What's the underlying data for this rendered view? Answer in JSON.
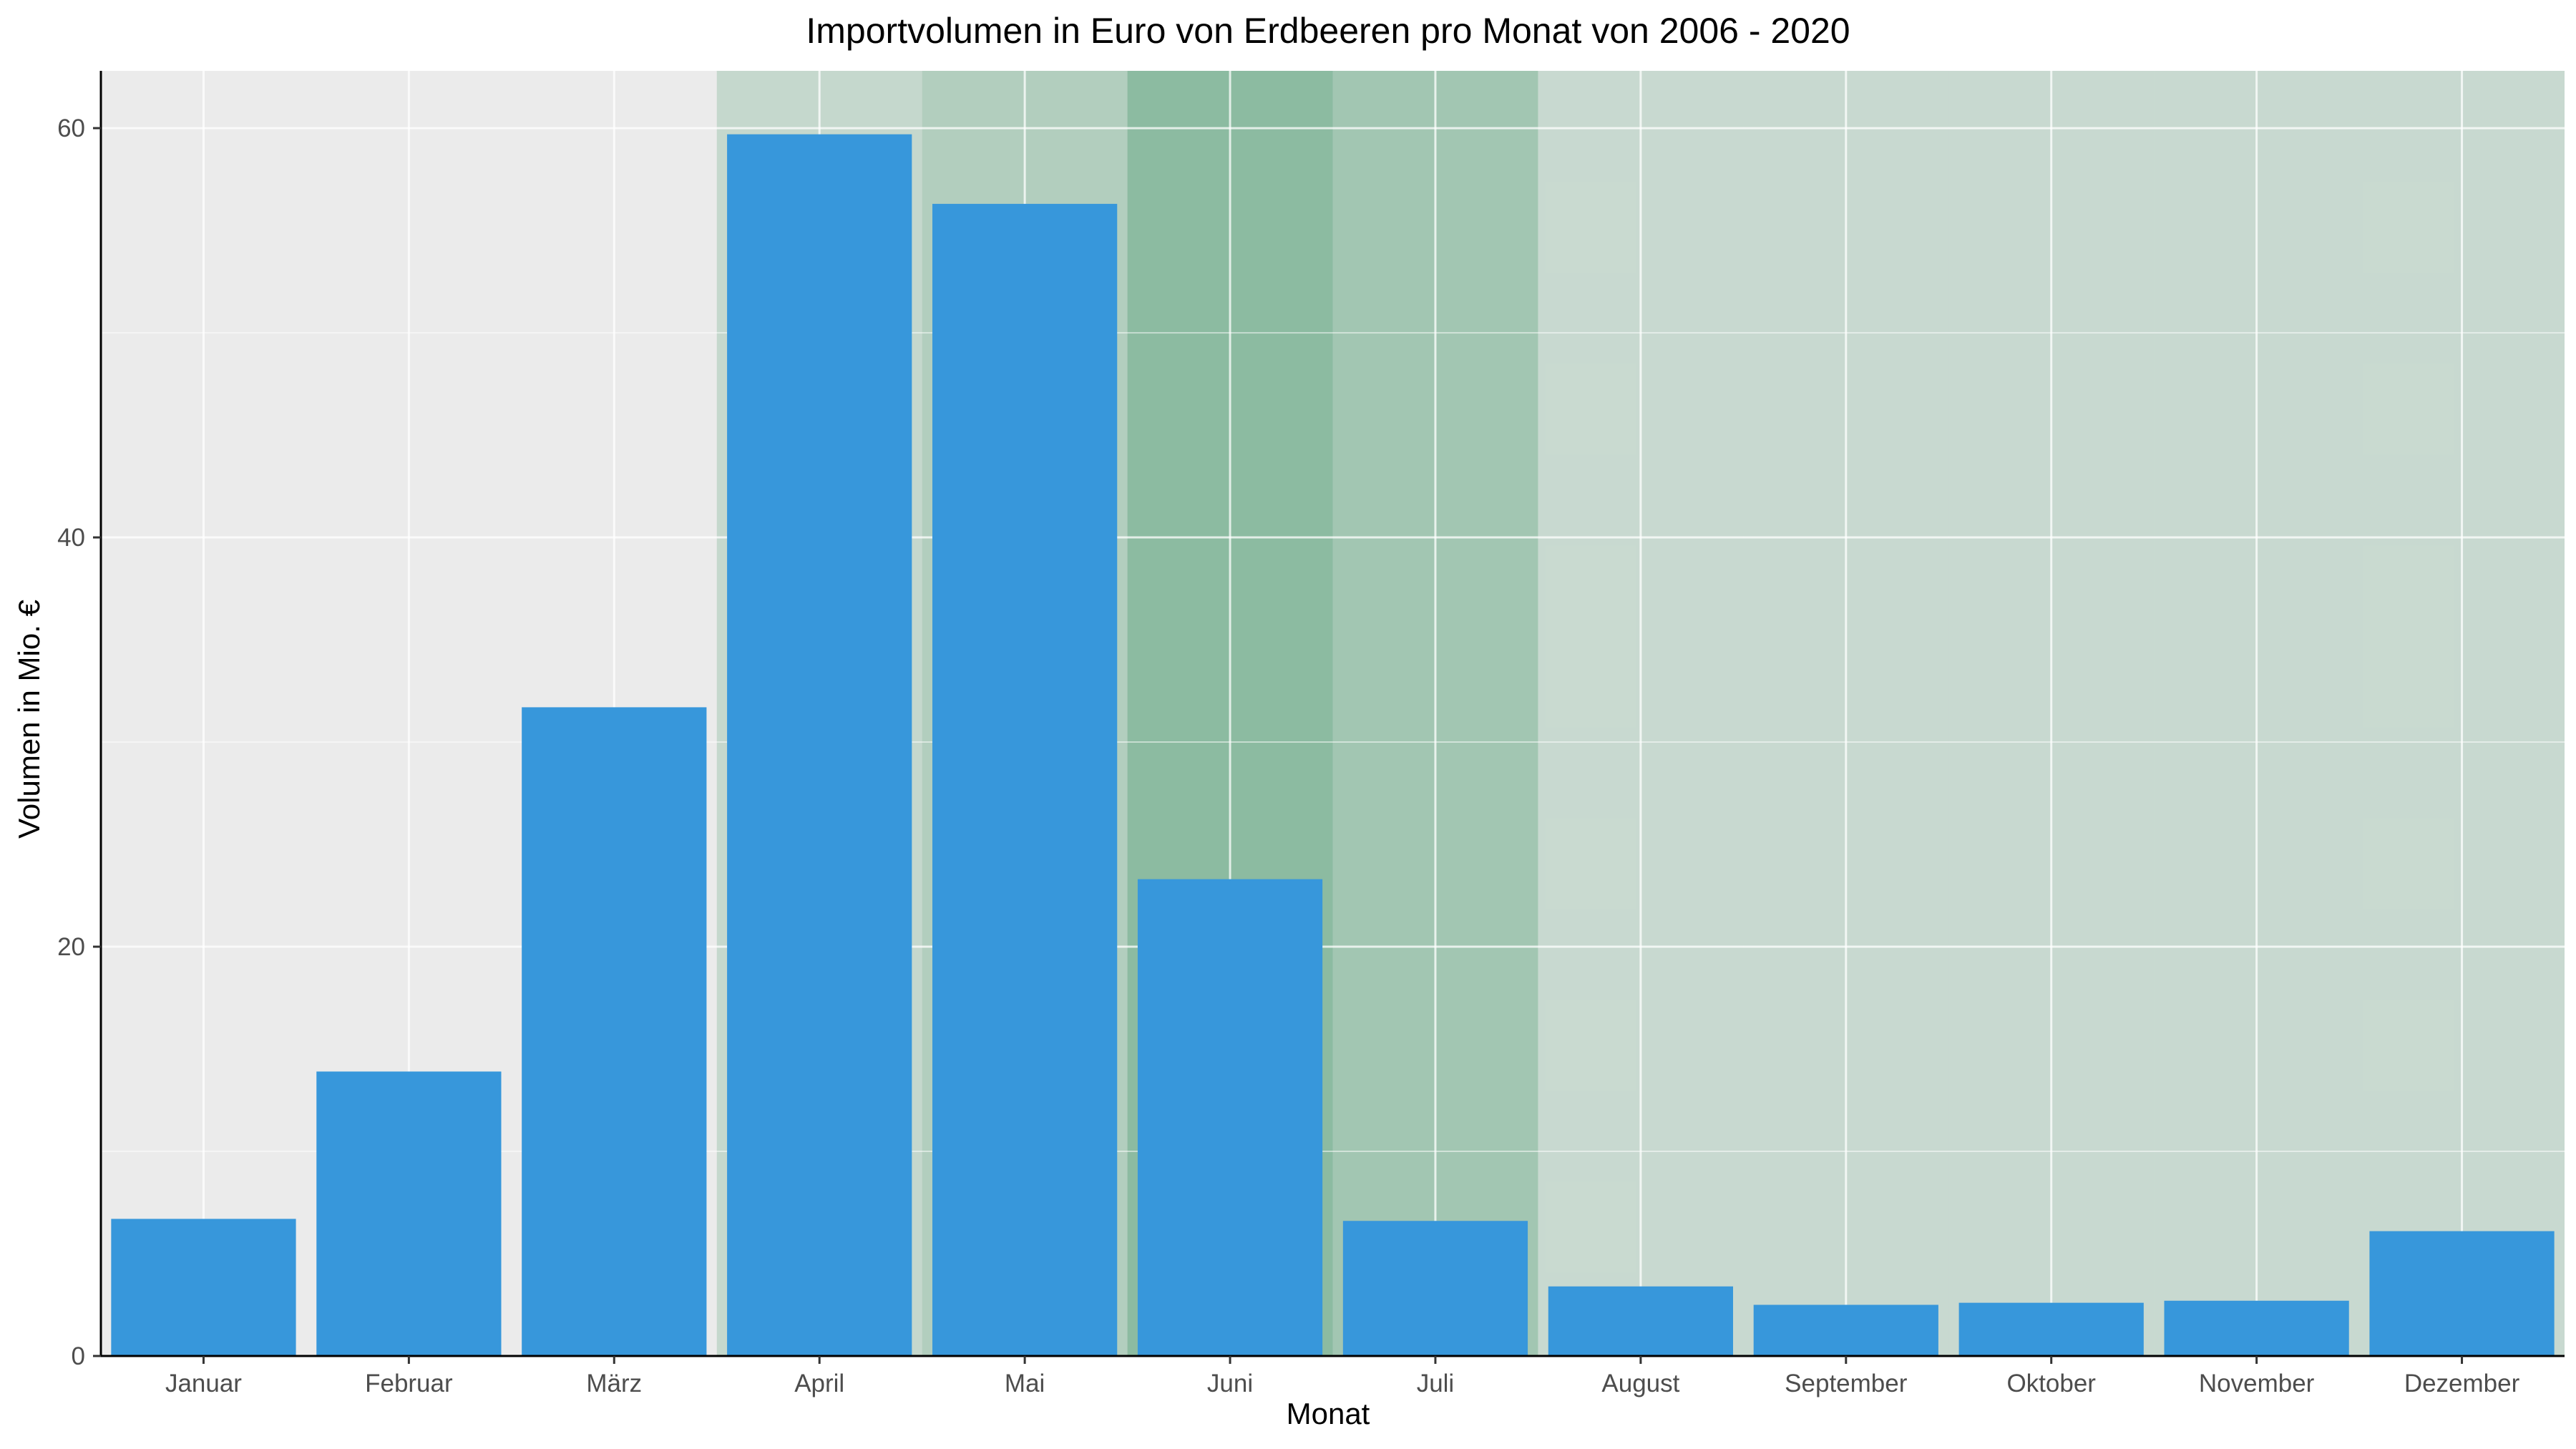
{
  "chart_data": {
    "type": "bar",
    "title": "Importvolumen in Euro von Erdbeeren pro Monat von 2006 - 2020",
    "xlabel": "Monat",
    "ylabel": "Volumen in Mio. €",
    "categories": [
      "Januar",
      "Februar",
      "März",
      "April",
      "Mai",
      "Juni",
      "Juli",
      "August",
      "September",
      "Oktober",
      "November",
      "Dezember"
    ],
    "values": [
      6.7,
      13.9,
      31.7,
      59.7,
      56.3,
      23.3,
      6.6,
      3.4,
      2.5,
      2.6,
      2.7,
      6.1
    ],
    "ylim": [
      0,
      62.8
    ],
    "yticks": [
      "0",
      "20",
      "40",
      "60"
    ],
    "grid": true,
    "legend": "none",
    "colors": {
      "bar": "#3797db",
      "panel": "#ebebeb",
      "grid": "#ffffff",
      "season_shade": "#2e8b57"
    },
    "season_shading": [
      {
        "month": "April",
        "intensity": 0.2
      },
      {
        "month": "Mai",
        "intensity": 0.3
      },
      {
        "month": "Juni",
        "intensity": 0.5
      },
      {
        "month": "Juli",
        "intensity": 0.38
      },
      {
        "month": "August",
        "intensity": 0.18
      },
      {
        "month": "September",
        "intensity": 0.18
      },
      {
        "month": "Oktober",
        "intensity": 0.18
      },
      {
        "month": "November",
        "intensity": 0.18
      },
      {
        "month": "Dezember",
        "intensity": 0.18
      }
    ]
  }
}
